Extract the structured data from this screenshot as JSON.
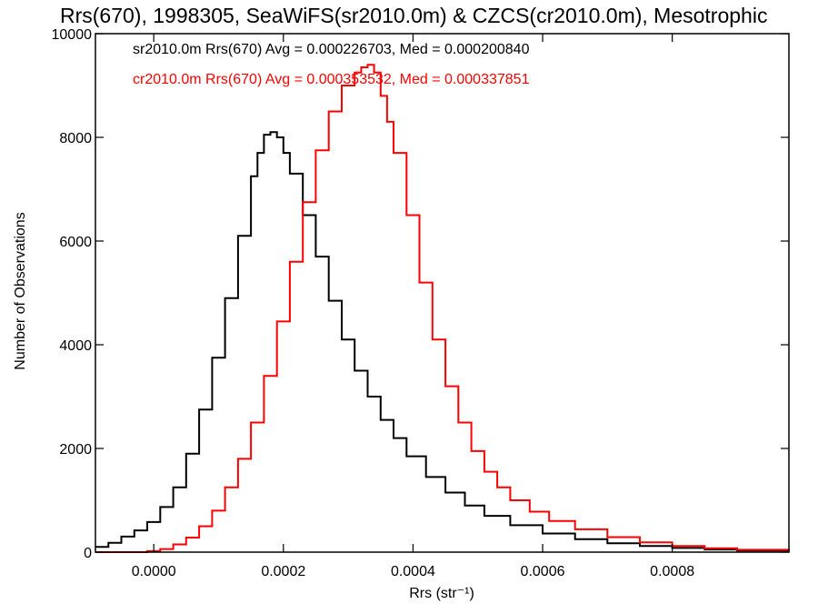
{
  "chart_data": {
    "type": "line",
    "title": "Rrs(670), 1998305, SeaWiFS(sr2010.0m) & CZCS(cr2010.0m), Mesotrophic",
    "xlabel": "Rrs (str⁻¹)",
    "ylabel": "Number of Observations",
    "xlim": [
      -9e-05,
      0.00098
    ],
    "ylim": [
      0,
      10000
    ],
    "x_ticks": [
      {
        "value": 0.0,
        "label": "0.0000"
      },
      {
        "value": 0.0002,
        "label": "0.0002"
      },
      {
        "value": 0.0004,
        "label": "0.0004"
      },
      {
        "value": 0.0006,
        "label": "0.0006"
      },
      {
        "value": 0.0008,
        "label": "0.0008"
      }
    ],
    "y_ticks": [
      {
        "value": 0,
        "label": "0"
      },
      {
        "value": 2000,
        "label": "2000"
      },
      {
        "value": 4000,
        "label": "4000"
      },
      {
        "value": 6000,
        "label": "6000"
      },
      {
        "value": 8000,
        "label": "8000"
      },
      {
        "value": 10000,
        "label": "10000"
      }
    ],
    "grid": false,
    "series": [
      {
        "annotation": "sr2010.0m Rrs(670) Avg = 0.000226703, Med = 0.000200840",
        "color": "#000000",
        "x": [
          -9e-05,
          -7e-05,
          -5e-05,
          -3e-05,
          -1e-05,
          1e-05,
          3e-05,
          5e-05,
          7e-05,
          9e-05,
          0.00011,
          0.00013,
          0.00015,
          0.00016,
          0.00017,
          0.00018,
          0.00019,
          0.0002,
          0.00021,
          0.00023,
          0.00025,
          0.00027,
          0.00029,
          0.00031,
          0.00033,
          0.00035,
          0.00037,
          0.00039,
          0.00042,
          0.00045,
          0.00048,
          0.00051,
          0.00055,
          0.0006,
          0.00065,
          0.0007,
          0.00075,
          0.0008,
          0.00085,
          0.0009,
          0.00098
        ],
        "y": [
          100,
          180,
          300,
          420,
          580,
          870,
          1250,
          1900,
          2750,
          3750,
          4900,
          6100,
          7250,
          7700,
          8050,
          8100,
          8000,
          7700,
          7300,
          6500,
          5700,
          4850,
          4100,
          3500,
          3000,
          2550,
          2200,
          1850,
          1450,
          1150,
          900,
          700,
          520,
          360,
          250,
          170,
          120,
          80,
          50,
          30,
          15
        ]
      },
      {
        "annotation": "cr2010.0m Rrs(670) Avg = 0.000353532, Med = 0.000337851",
        "color": "#ff0000",
        "x": [
          -9e-05,
          -5e-05,
          -1e-05,
          1e-05,
          3e-05,
          5e-05,
          7e-05,
          9e-05,
          0.00011,
          0.00013,
          0.00015,
          0.00017,
          0.00019,
          0.00021,
          0.00023,
          0.00025,
          0.00027,
          0.00029,
          0.00031,
          0.00032,
          0.00033,
          0.00034,
          0.00035,
          0.00036,
          0.00037,
          0.00039,
          0.00041,
          0.00043,
          0.00045,
          0.00047,
          0.00049,
          0.00051,
          0.00053,
          0.00055,
          0.00058,
          0.00061,
          0.00065,
          0.0007,
          0.00075,
          0.0008,
          0.00085,
          0.0009,
          0.00098
        ],
        "y": [
          0,
          0,
          20,
          60,
          150,
          280,
          500,
          800,
          1250,
          1800,
          2500,
          3400,
          4450,
          5600,
          6750,
          7750,
          8500,
          9000,
          9250,
          9350,
          9400,
          9250,
          8800,
          8300,
          7700,
          6500,
          5200,
          4100,
          3200,
          2500,
          1950,
          1550,
          1250,
          1000,
          780,
          600,
          440,
          290,
          190,
          120,
          75,
          45,
          20
        ]
      }
    ]
  }
}
